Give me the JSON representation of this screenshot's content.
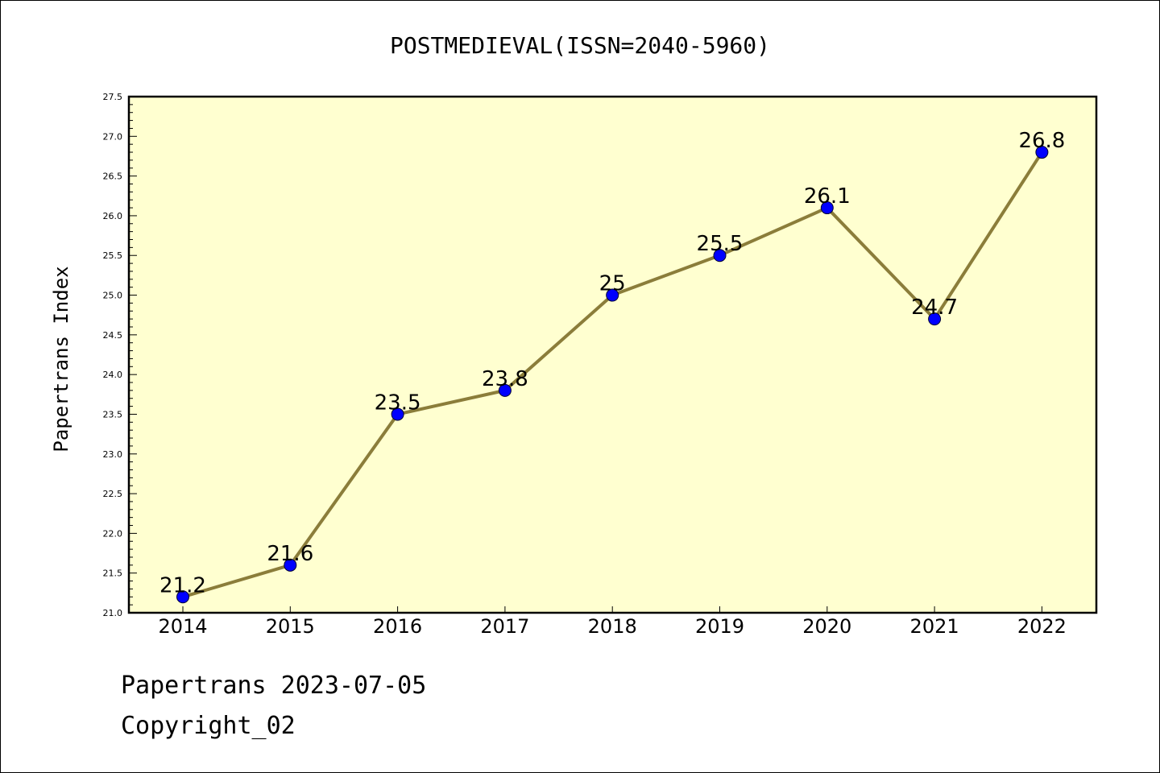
{
  "chart_data": {
    "type": "line",
    "title": "POSTMEDIEVAL(ISSN=2040-5960)",
    "ylabel": "Papertrans Index",
    "xlabel": "",
    "categories": [
      "2014",
      "2015",
      "2016",
      "2017",
      "2018",
      "2019",
      "2020",
      "2021",
      "2022"
    ],
    "values": [
      21.2,
      21.6,
      23.5,
      23.8,
      25.0,
      25.5,
      26.1,
      24.7,
      26.8
    ],
    "data_labels": [
      "21.2",
      "21.6",
      "23.5",
      "23.8",
      "25",
      "25.5",
      "26.1",
      "24.7",
      "26.8"
    ],
    "ylim": [
      21.0,
      27.5
    ],
    "yticks": [
      "21.0",
      "21.5",
      "22.0",
      "22.5",
      "23.0",
      "23.5",
      "24.0",
      "24.5",
      "25.0",
      "25.5",
      "26.0",
      "26.5",
      "27.0",
      "27.5"
    ],
    "grid": false,
    "colors": {
      "plot_background": "#ffffd0",
      "line": "#8b7d3a",
      "marker": "#0000ff"
    }
  },
  "footer": {
    "date_line": "Papertrans 2023-07-05",
    "copyright_line": "Copyright_02"
  }
}
